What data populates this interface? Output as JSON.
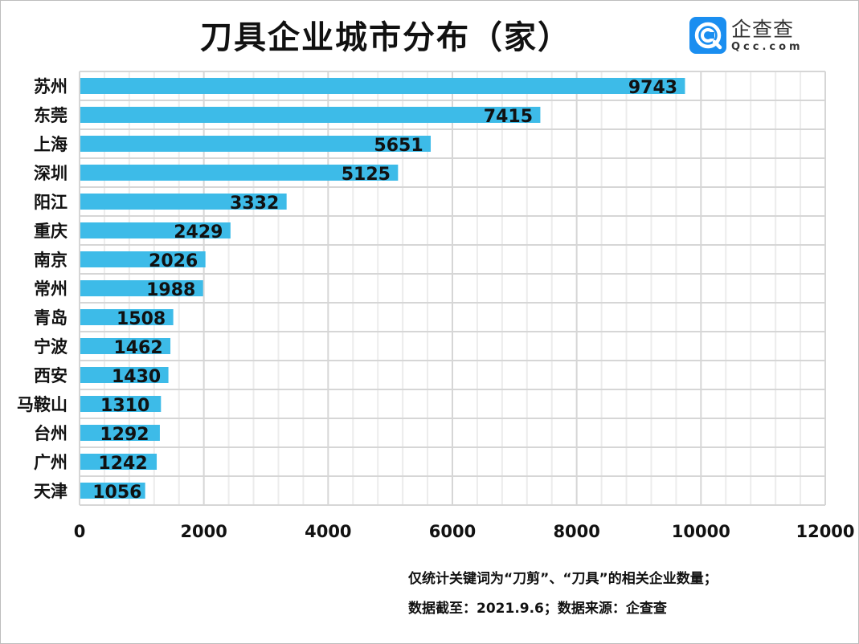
{
  "chart_data": {
    "type": "bar",
    "orientation": "horizontal",
    "title": "刀具企业城市分布（家）",
    "categories": [
      "苏州",
      "东莞",
      "上海",
      "深圳",
      "阳江",
      "重庆",
      "南京",
      "常州",
      "青岛",
      "宁波",
      "西安",
      "马鞍山",
      "台州",
      "广州",
      "天津"
    ],
    "values": [
      9743,
      7415,
      5651,
      5125,
      3332,
      2429,
      2026,
      1988,
      1508,
      1462,
      1430,
      1310,
      1292,
      1242,
      1056
    ],
    "xlim": [
      0,
      12000
    ],
    "xticks": [
      0,
      2000,
      4000,
      6000,
      8000,
      10000,
      12000
    ],
    "minor_step": 400,
    "grid": true,
    "bar_color": "#3dbbe8",
    "xlabel": "",
    "ylabel": ""
  },
  "logo": {
    "cn": "企查查",
    "en": "Qcc.com"
  },
  "notes": [
    "仅统计关键词为“刀剪”、“刀具”的相关企业数量；",
    "数据截至：2021.9.6；数据来源：企查查"
  ]
}
